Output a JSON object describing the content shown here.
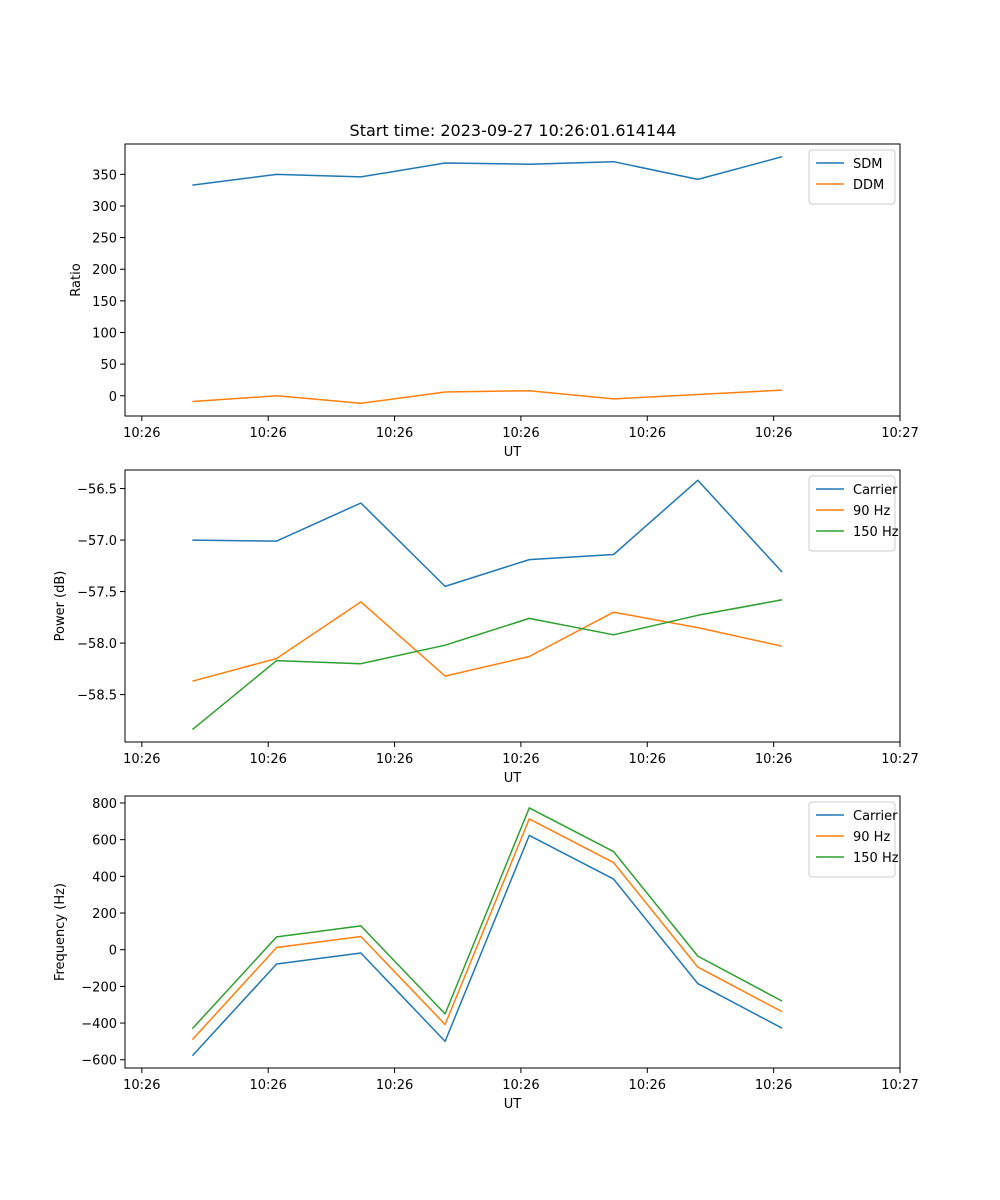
{
  "figure": {
    "title": "Start time: 2023-09-27 10:26:01.614144",
    "colors": {
      "blue": "#1f77b4",
      "orange": "#ff7f0e",
      "green": "#2ca02c"
    }
  },
  "chart_data": [
    {
      "type": "line",
      "title": "Start time: 2023-09-27 10:26:01.614144",
      "xlabel": "UT",
      "ylabel": "Ratio",
      "x": [
        1,
        2,
        3,
        4,
        5,
        6,
        7,
        8
      ],
      "xlim": [
        0.2,
        9.4
      ],
      "xticks": [
        0.4,
        1.9,
        3.4,
        4.9,
        6.4,
        7.9,
        9.4
      ],
      "xtick_labels": [
        "10:26",
        "10:26",
        "10:26",
        "10:26",
        "10:26",
        "10:26",
        "10:27"
      ],
      "ylim": [
        -32,
        398
      ],
      "yticks": [
        0,
        50,
        100,
        150,
        200,
        250,
        300,
        350
      ],
      "ytick_labels": [
        "0",
        "50",
        "100",
        "150",
        "200",
        "250",
        "300",
        "350"
      ],
      "legend": "top-right",
      "series": [
        {
          "name": "SDM",
          "color": "#1f77b4",
          "values": [
            333,
            350,
            346,
            368,
            366,
            370,
            342,
            378
          ]
        },
        {
          "name": "DDM",
          "color": "#ff7f0e",
          "values": [
            -9,
            0,
            -12,
            6,
            8,
            -5,
            2,
            9
          ]
        }
      ]
    },
    {
      "type": "line",
      "title": "",
      "xlabel": "UT",
      "ylabel": "Power (dB)",
      "x": [
        1,
        2,
        3,
        4,
        5,
        6,
        7,
        8
      ],
      "xlim": [
        0.2,
        9.4
      ],
      "xticks": [
        0.4,
        1.9,
        3.4,
        4.9,
        6.4,
        7.9,
        9.4
      ],
      "xtick_labels": [
        "10:26",
        "10:26",
        "10:26",
        "10:26",
        "10:26",
        "10:26",
        "10:27"
      ],
      "ylim": [
        -58.96,
        -56.32
      ],
      "yticks": [
        -58.5,
        -58.0,
        -57.5,
        -57.0,
        -56.5
      ],
      "ytick_labels": [
        "−58.5",
        "−58.0",
        "−57.5",
        "−57.0",
        "−56.5"
      ],
      "legend": "top-right",
      "series": [
        {
          "name": "Carrier",
          "color": "#1f77b4",
          "values": [
            -57.0,
            -57.01,
            -56.64,
            -57.45,
            -57.19,
            -57.14,
            -56.42,
            -57.31
          ]
        },
        {
          "name": "90 Hz",
          "color": "#ff7f0e",
          "values": [
            -58.37,
            -58.15,
            -57.6,
            -58.32,
            -58.13,
            -57.7,
            -57.85,
            -58.03
          ]
        },
        {
          "name": "150 Hz",
          "color": "#2ca02c",
          "values": [
            -58.84,
            -58.17,
            -58.2,
            -58.02,
            -57.76,
            -57.92,
            -57.73,
            -57.58
          ]
        }
      ]
    },
    {
      "type": "line",
      "title": "",
      "xlabel": "UT",
      "ylabel": "Frequency (Hz)",
      "x": [
        1,
        2,
        3,
        4,
        5,
        6,
        7,
        8
      ],
      "xlim": [
        0.2,
        9.4
      ],
      "xticks": [
        0.4,
        1.9,
        3.4,
        4.9,
        6.4,
        7.9,
        9.4
      ],
      "xtick_labels": [
        "10:26",
        "10:26",
        "10:26",
        "10:26",
        "10:26",
        "10:26",
        "10:27"
      ],
      "ylim": [
        -645,
        838
      ],
      "yticks": [
        -600,
        -400,
        -200,
        0,
        200,
        400,
        600,
        800
      ],
      "ytick_labels": [
        "−600",
        "−400",
        "−200",
        "0",
        "200",
        "400",
        "600",
        "800"
      ],
      "legend": "top-right",
      "series": [
        {
          "name": "Carrier",
          "color": "#1f77b4",
          "values": [
            -578,
            -78,
            -18,
            -500,
            623,
            385,
            -185,
            -428
          ]
        },
        {
          "name": "90 Hz",
          "color": "#ff7f0e",
          "values": [
            -490,
            12,
            72,
            -408,
            713,
            475,
            -95,
            -338
          ]
        },
        {
          "name": "150 Hz",
          "color": "#2ca02c",
          "values": [
            -430,
            70,
            130,
            -350,
            773,
            535,
            -35,
            -280
          ]
        }
      ]
    }
  ]
}
